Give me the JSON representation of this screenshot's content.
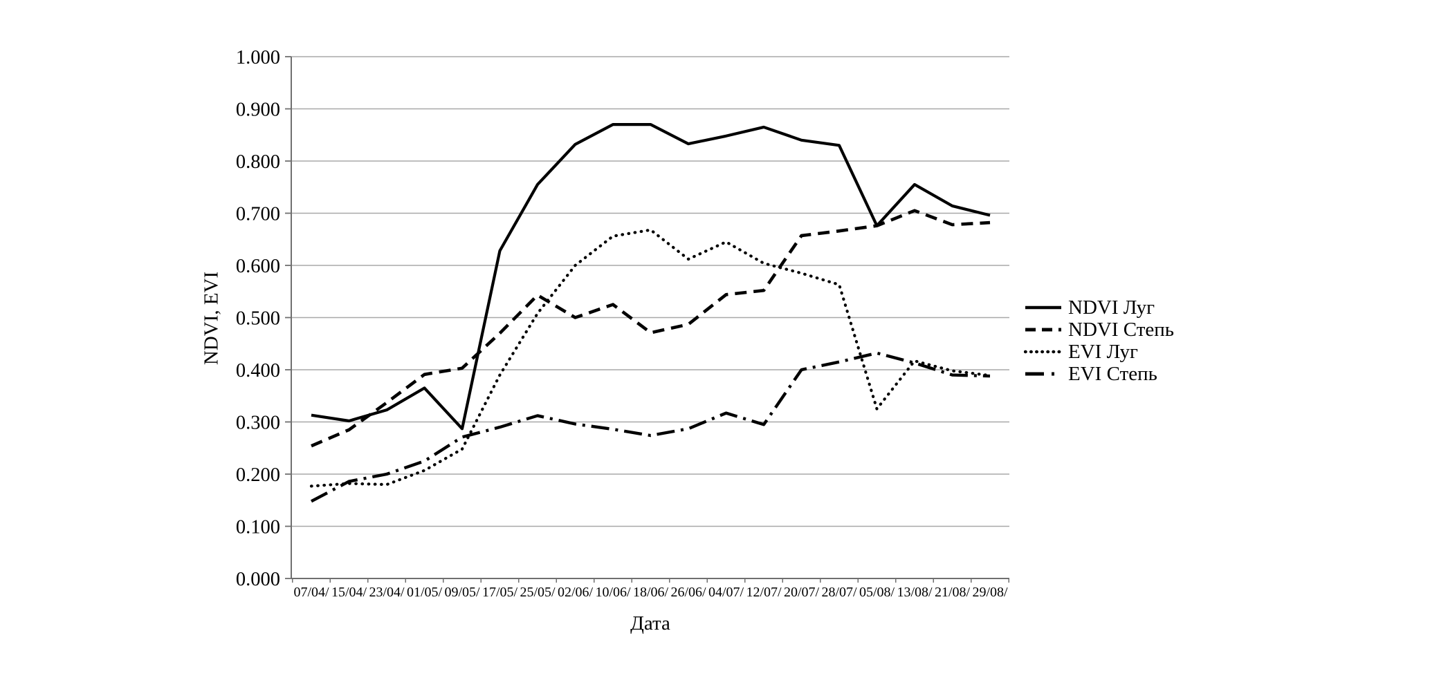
{
  "chart_data": {
    "type": "line",
    "title": "",
    "ylabel": "NDVI, EVI",
    "xlabel": "Дата",
    "ylim": [
      0.0,
      1.0
    ],
    "ytick_step": 0.1,
    "ytick_labels": [
      "0.000",
      "0.100",
      "0.200",
      "0.300",
      "0.400",
      "0.500",
      "0.600",
      "0.700",
      "0.800",
      "0.900",
      "1.000"
    ],
    "grid": "horizontal",
    "legend_position": "right-center",
    "line_color": "#000000",
    "grid_color": "#a8a8a8",
    "axis_color": "#6f6f6f",
    "categories": [
      "07/04/",
      "15/04/",
      "23/04/",
      "01/05/",
      "09/05/",
      "17/05/",
      "25/05/",
      "02/06/",
      "10/06/",
      "18/06/",
      "26/06/",
      "04/07/",
      "12/07/",
      "20/07/",
      "28/07/",
      "05/08/",
      "13/08/",
      "21/08/",
      "29/08/"
    ],
    "series": [
      {
        "name": "NDVI Луг",
        "style": "solid",
        "values": [
          0.313,
          0.302,
          0.323,
          0.365,
          0.287,
          0.628,
          0.755,
          0.832,
          0.87,
          0.87,
          0.833,
          0.848,
          0.865,
          0.84,
          0.83,
          0.676,
          0.755,
          0.714,
          0.696
        ]
      },
      {
        "name": "NDVI Степь",
        "style": "dashed",
        "values": [
          0.254,
          0.285,
          0.337,
          0.391,
          0.403,
          0.47,
          0.543,
          0.5,
          0.525,
          0.471,
          0.487,
          0.544,
          0.552,
          0.657,
          0.666,
          0.676,
          0.705,
          0.678,
          0.682
        ]
      },
      {
        "name": "EVI Луг",
        "style": "dotted",
        "values": [
          0.177,
          0.182,
          0.18,
          0.207,
          0.248,
          0.39,
          0.508,
          0.6,
          0.656,
          0.668,
          0.612,
          0.645,
          0.604,
          0.585,
          0.563,
          0.325,
          0.417,
          0.398,
          0.389
        ]
      },
      {
        "name": "EVI Степь",
        "style": "dashdot",
        "values": [
          0.148,
          0.186,
          0.2,
          0.225,
          0.271,
          0.29,
          0.312,
          0.296,
          0.286,
          0.274,
          0.287,
          0.317,
          0.295,
          0.4,
          0.415,
          0.432,
          0.413,
          0.39,
          0.388
        ]
      }
    ]
  }
}
